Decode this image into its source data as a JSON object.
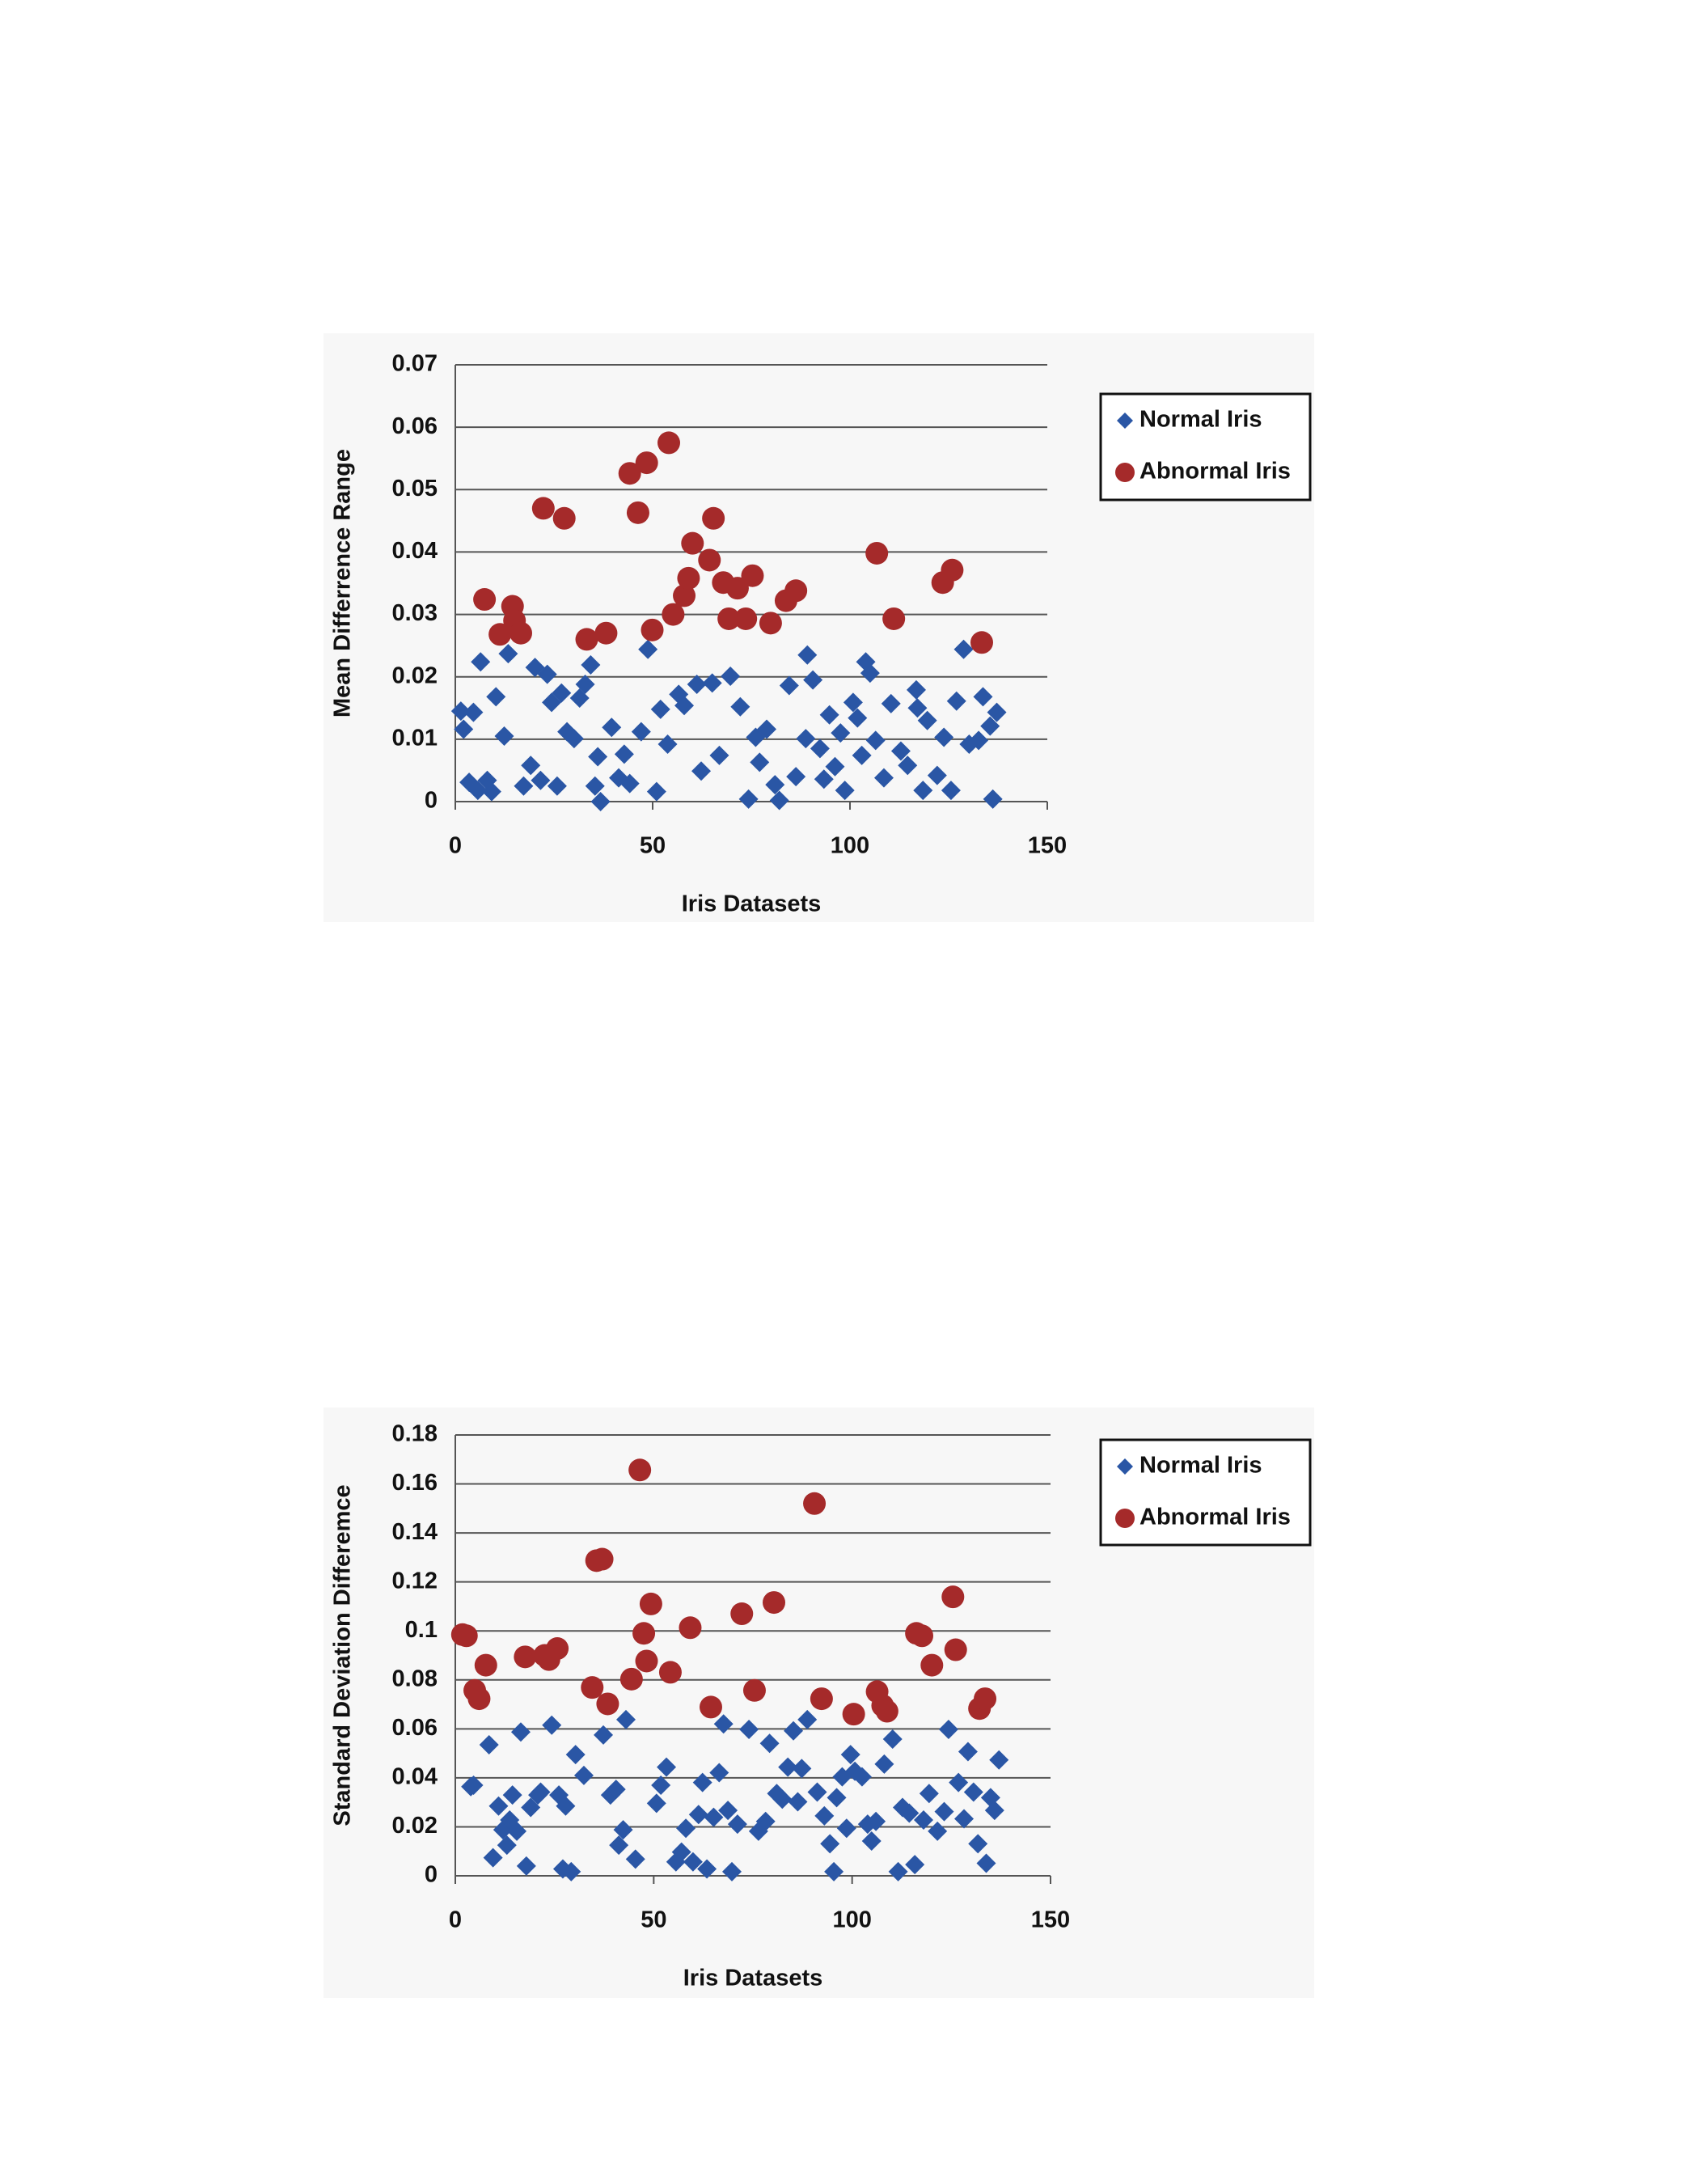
{
  "chart_data": [
    {
      "type": "scatter",
      "x_label": "Iris Datasets",
      "y_label": "Mean Differrence Range",
      "xlim": [
        0,
        150
      ],
      "xticks": [
        0,
        50,
        100,
        150
      ],
      "ylim": [
        0,
        0.07
      ],
      "yticks": [
        0,
        0.01,
        0.02,
        0.03,
        0.04,
        0.05,
        0.06,
        0.07
      ],
      "grid": true,
      "legend": "right",
      "series": [
        {
          "name": "Normal Iris",
          "color": "#2a56a5",
          "marker": "diamond",
          "x": [
            1.4,
            2.1,
            4.6,
            3.5,
            6.4,
            5.7,
            8.1,
            9.2,
            10.3,
            12.4,
            13.4,
            17.3,
            19.1,
            20.2,
            21.6,
            23.3,
            24.4,
            25.8,
            26.9,
            28.3,
            30.1,
            31.5,
            32.9,
            34.3,
            35.4,
            36.8,
            36.1,
            39.6,
            41.4,
            42.8,
            44.2,
            47.1,
            48.8,
            51,
            52,
            53.8,
            56.6,
            58,
            61.2,
            62.3,
            65.1,
            66.9,
            69.7,
            72.2,
            74.3,
            76.1,
            77.1,
            78.9,
            81,
            82.1,
            84.6,
            86.3,
            88.8,
            89.2,
            90.6,
            92.4,
            93.4,
            94.8,
            96.2,
            97.6,
            98.7,
            100.8,
            101.9,
            103,
            104,
            105.1,
            106.5,
            108.6,
            110.4,
            112.9,
            114.6,
            116.8,
            117.1,
            118.5,
            119.6,
            122.1,
            123.8,
            125.6,
            127,
            128.8,
            130.2,
            132.6,
            133.7,
            135.5,
            137.2,
            136.2
          ],
          "values": [
            0.0145,
            0.0116,
            0.0143,
            0.0031,
            0.0224,
            0.0018,
            0.0034,
            0.0016,
            0.0168,
            0.0105,
            0.0237,
            0.0025,
            0.0058,
            0.0215,
            0.0034,
            0.0204,
            0.0159,
            0.0025,
            0.0174,
            0.0112,
            0.0101,
            0.0166,
            0.0188,
            0.0219,
            0.0025,
            0,
            0.0072,
            0.0119,
            0.0038,
            0.0076,
            0.0029,
            0.0112,
            0.0244,
            0.0016,
            0.0148,
            0.0092,
            0.0172,
            0.0154,
            0.0188,
            0.0049,
            0.019,
            0.0074,
            0.0201,
            0.0152,
            0.0004,
            0.0103,
            0.0063,
            0.0116,
            0.0027,
            0.0002,
            0.0186,
            0.004,
            0.0101,
            0.0235,
            0.0195,
            0.0085,
            0.0036,
            0.0139,
            0.0056,
            0.011,
            0.0018,
            0.0159,
            0.0134,
            0.0074,
            0.0224,
            0.0206,
            0.0098,
            0.0038,
            0.0157,
            0.0081,
            0.0058,
            0.0179,
            0.015,
            0.0018,
            0.013,
            0.0042,
            0.0103,
            0.0018,
            0.0161,
            0.0244,
            0.0092,
            0.0098,
            0.0168,
            0.0121,
            0.0143,
            0.0004
          ]
        },
        {
          "name": "Abnormal Iris",
          "color": "#a52a2a",
          "marker": "circle",
          "x": [
            7.4,
            11.3,
            14.5,
            15,
            16.6,
            22.3,
            27.6,
            33.3,
            38.2,
            44.2,
            46.3,
            48.5,
            49.9,
            54.1,
            55.2,
            58,
            59.1,
            60.1,
            64.4,
            65.4,
            67.9,
            69.3,
            71.5,
            73.6,
            75.3,
            79.9,
            83.8,
            86.3,
            106.8,
            111.1,
            123.5,
            125.9,
            133.4
          ],
          "values": [
            0.0324,
            0.0268,
            0.0313,
            0.029,
            0.027,
            0.047,
            0.0454,
            0.026,
            0.027,
            0.0526,
            0.0463,
            0.0543,
            0.0275,
            0.0575,
            0.03,
            0.033,
            0.0358,
            0.0414,
            0.0387,
            0.0454,
            0.0351,
            0.0293,
            0.0342,
            0.0293,
            0.0362,
            0.0286,
            0.0322,
            0.0338,
            0.0398,
            0.0293,
            0.0351,
            0.0371,
            0.0255
          ]
        }
      ]
    },
    {
      "type": "scatter",
      "x_label": "Iris Datasets",
      "y_label": "Standard Deviation Differemce",
      "xlim": [
        0,
        150
      ],
      "xticks": [
        0,
        50,
        100,
        150
      ],
      "ylim": [
        0,
        0.18
      ],
      "yticks": [
        0,
        0.02,
        0.04,
        0.06,
        0.08,
        0.1,
        0.12,
        0.14,
        0.16,
        0.18
      ],
      "grid": true,
      "legend": "right",
      "series": [
        {
          "name": "Normal Iris",
          "color": "#2a56a5",
          "marker": "diamond",
          "x": [
            3.9,
            4.6,
            8.5,
            9.5,
            10.9,
            12,
            13,
            13.7,
            14.4,
            15.5,
            16.5,
            17.9,
            19,
            20.8,
            21.5,
            24.3,
            26.1,
            27.1,
            27.8,
            29.2,
            30.3,
            32.4,
            37.3,
            39.1,
            40.5,
            41.2,
            42.3,
            43,
            45.4,
            50.7,
            51.8,
            53.2,
            55.6,
            57,
            58.1,
            59.9,
            61.3,
            62.3,
            63.4,
            65.1,
            66.5,
            67.6,
            68.7,
            69.7,
            71.1,
            74,
            76.4,
            78.2,
            79.2,
            81,
            82.4,
            83.8,
            85.2,
            86.3,
            87.3,
            88.7,
            91.2,
            93,
            94.4,
            95.4,
            96.1,
            97.5,
            98.6,
            99.6,
            100.7,
            102.5,
            103.9,
            104.9,
            106,
            108.1,
            110.2,
            111.6,
            112.7,
            114.4,
            115.8,
            118,
            119.4,
            121.5,
            123.2,
            124.3,
            126.8,
            128.2,
            129.2,
            130.6,
            131.7,
            133.8,
            134.9,
            135.9,
            137
          ],
          "values": [
            0.0364,
            0.037,
            0.0535,
            0.0074,
            0.0285,
            0.0188,
            0.0125,
            0.0228,
            0.033,
            0.0182,
            0.0587,
            0.004,
            0.0279,
            0.033,
            0.0342,
            0.0615,
            0.033,
            0.0028,
            0.0285,
            0.0017,
            0.0495,
            0.041,
            0.0575,
            0.033,
            0.0353,
            0.0125,
            0.0188,
            0.0638,
            0.0068,
            0.0296,
            0.037,
            0.0444,
            0.0057,
            0.0097,
            0.0194,
            0.0057,
            0.025,
            0.0381,
            0.0028,
            0.0239,
            0.0421,
            0.062,
            0.0267,
            0.0017,
            0.0211,
            0.0598,
            0.0182,
            0.0222,
            0.0541,
            0.0336,
            0.0313,
            0.0444,
            0.0592,
            0.0302,
            0.0438,
            0.0638,
            0.0342,
            0.0245,
            0.0131,
            0.0017,
            0.0319,
            0.0404,
            0.0194,
            0.0495,
            0.0427,
            0.0404,
            0.0211,
            0.0142,
            0.0222,
            0.0456,
            0.0558,
            0.0017,
            0.0279,
            0.0256,
            0.0046,
            0.0228,
            0.0336,
            0.0182,
            0.0262,
            0.0598,
            0.0381,
            0.0233,
            0.0507,
            0.0342,
            0.0131,
            0.0051,
            0.0319,
            0.0267,
            0.0473
          ]
        },
        {
          "name": "Abnormal Iris",
          "color": "#a52a2a",
          "marker": "circle",
          "x": [
            1.8,
            2.8,
            4.9,
            6,
            7.7,
            17.6,
            22.5,
            23.6,
            25.7,
            34.5,
            35.6,
            37,
            38.4,
            44.4,
            46.5,
            47.5,
            48.2,
            49.3,
            54.2,
            59.2,
            64.4,
            72.2,
            75.4,
            80.3,
            90.5,
            92.3,
            100.4,
            106.3,
            107.7,
            108.8,
            116.2,
            117.6,
            120.1,
            125.4,
            126.1,
            132.1,
            133.5
          ],
          "values": [
            0.0985,
            0.098,
            0.0757,
            0.0723,
            0.086,
            0.0894,
            0.09,
            0.0883,
            0.0928,
            0.0769,
            0.1287,
            0.1293,
            0.0702,
            0.0803,
            0.1657,
            0.099,
            0.0877,
            0.111,
            0.0831,
            0.1013,
            0.0689,
            0.107,
            0.0757,
            0.1116,
            0.152,
            0.0723,
            0.066,
            0.0752,
            0.0695,
            0.0672,
            0.099,
            0.098,
            0.086,
            0.1139,
            0.0923,
            0.0683,
            0.0723
          ]
        }
      ]
    }
  ]
}
